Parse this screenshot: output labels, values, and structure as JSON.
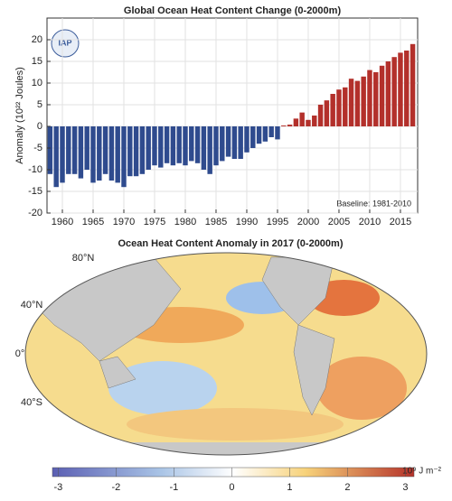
{
  "logo": "IAP",
  "chart_data": {
    "type": "bar",
    "title": "Global Ocean Heat Content Change (0-2000m)",
    "y_label": "Anomaly (10²² Joules)",
    "annotation": "Baseline: 1981-2010",
    "x": [
      1958,
      1959,
      1960,
      1961,
      1962,
      1963,
      1964,
      1965,
      1966,
      1967,
      1968,
      1969,
      1970,
      1971,
      1972,
      1973,
      1974,
      1975,
      1976,
      1977,
      1978,
      1979,
      1980,
      1981,
      1982,
      1983,
      1984,
      1985,
      1986,
      1987,
      1988,
      1989,
      1990,
      1991,
      1992,
      1993,
      1994,
      1995,
      1996,
      1997,
      1998,
      1999,
      2000,
      2001,
      2002,
      2003,
      2004,
      2005,
      2006,
      2007,
      2008,
      2009,
      2010,
      2011,
      2012,
      2013,
      2014,
      2015,
      2016,
      2017
    ],
    "values": [
      -11,
      -14,
      -13,
      -11,
      -11,
      -12,
      -10,
      -13,
      -12.5,
      -11,
      -12.5,
      -13,
      -14,
      -11.5,
      -11.5,
      -11,
      -10,
      -9,
      -9.5,
      -8.5,
      -9,
      -8.5,
      -9,
      -8,
      -8.5,
      -10,
      -11,
      -9,
      -8,
      -7,
      -7.5,
      -7.5,
      -6,
      -5,
      -4,
      -3.5,
      -2.5,
      -3,
      0.2,
      0.4,
      1.8,
      3.2,
      1.5,
      2.5,
      5,
      6,
      7.5,
      8.5,
      9,
      11,
      10.5,
      11.5,
      13,
      12.5,
      14,
      15,
      16,
      17,
      17.5,
      19
    ],
    "positive_color": "#b3302b",
    "negative_color": "#2f4b8e",
    "xlim": [
      1957.5,
      2017.8
    ],
    "xticks": [
      1960,
      1965,
      1970,
      1975,
      1980,
      1985,
      1990,
      1995,
      2000,
      2005,
      2010,
      2015
    ],
    "ylim": [
      -20,
      25
    ],
    "yticks": [
      -20,
      -15,
      -10,
      -5,
      0,
      5,
      10,
      15,
      20
    ],
    "grid": true
  },
  "map": {
    "title": "Ocean Heat Content Anomaly in 2017 (0-2000m)",
    "lat_labels": [
      "80°N",
      "40°N",
      "0°",
      "40°S"
    ],
    "colorbar": {
      "lim": [
        -3.1,
        3.15
      ],
      "ticks": [
        -3,
        -2,
        -1,
        0,
        1,
        2,
        3
      ],
      "unit": "10⁹ J m⁻²"
    }
  }
}
